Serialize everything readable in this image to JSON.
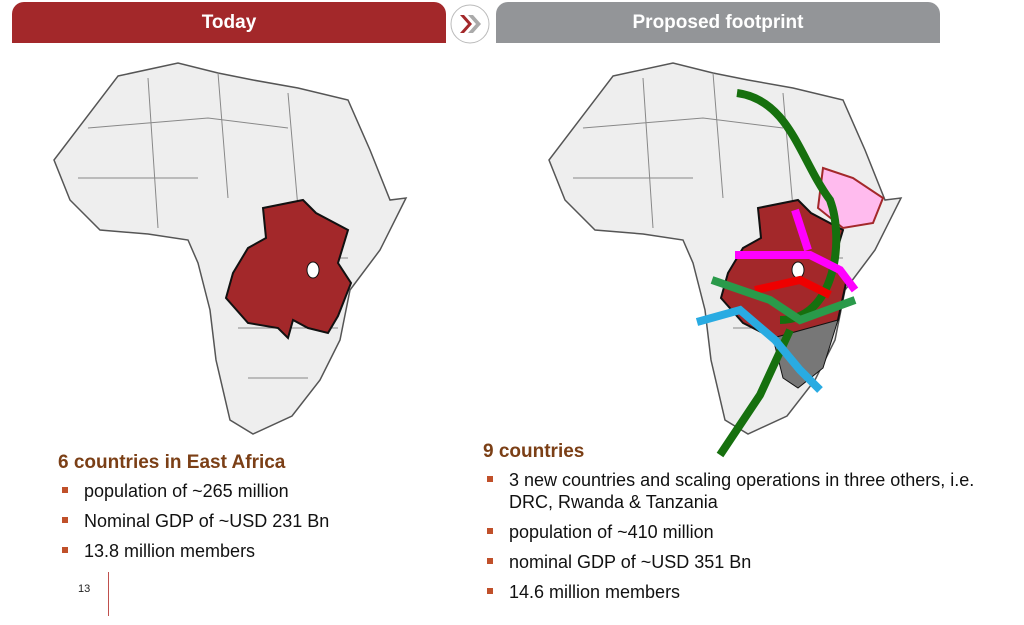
{
  "tabs": {
    "today": "Today",
    "proposed": "Proposed footprint"
  },
  "colors": {
    "brand_red": "#a3282a",
    "grey": "#939598",
    "heading": "#7b3f16"
  },
  "left": {
    "heading": "6 countries in East Africa",
    "bullets": [
      "population of ~265 million",
      "Nominal GDP of ~USD 231 Bn",
      "13.8 million members"
    ]
  },
  "right": {
    "heading": "9 countries",
    "bullets": [
      "3 new countries and scaling operations in three others, i.e. DRC, Rwanda & Tanzania",
      "population of ~410 million",
      "nominal GDP of ~USD 351 Bn",
      "14.6 million members"
    ]
  },
  "page_number": "13"
}
